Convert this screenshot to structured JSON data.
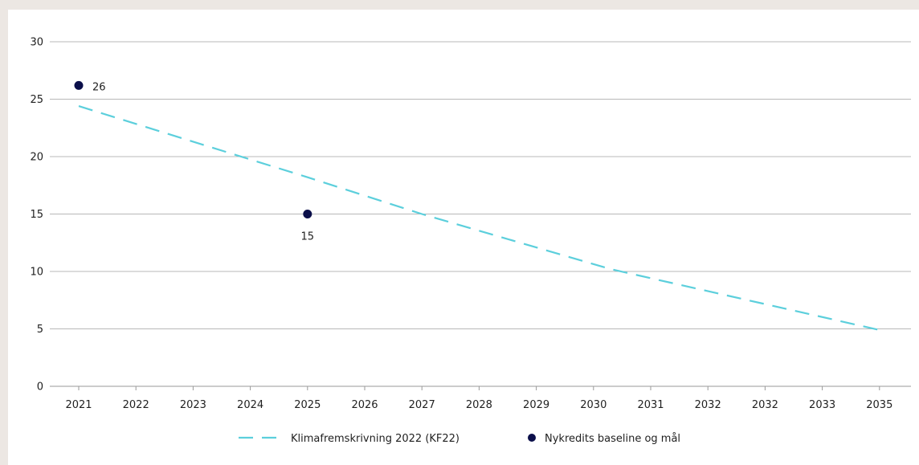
{
  "chart_data": {
    "type": "line",
    "title": "",
    "xlabel": "",
    "ylabel": "",
    "x_tick_labels": [
      "2021",
      "2022",
      "2023",
      "2024",
      "2025",
      "2026",
      "2027",
      "2028",
      "2029",
      "2030",
      "2031",
      "2032",
      "2032",
      "2033",
      "2035"
    ],
    "ylim": [
      0,
      30
    ],
    "y_ticks": [
      0,
      5,
      10,
      15,
      20,
      25,
      30
    ],
    "grid": "horizontal",
    "legend_position": "bottom-center",
    "series": [
      {
        "name": "Klimafremskrivning 2022 (KF22)",
        "style": "dashed-line",
        "color": "#5ccfdc",
        "points": [
          {
            "x": 2021,
            "y": 24.4
          },
          {
            "x": 2025,
            "y": 18.2
          },
          {
            "x": 2027,
            "y": 15.0
          },
          {
            "x": 2030.3,
            "y": 10.2
          },
          {
            "x": 2035,
            "y": 4.9
          }
        ]
      },
      {
        "name": "Nykredits baseline og mål",
        "style": "points",
        "color": "#0b0f4a",
        "points": [
          {
            "x": 2021,
            "y": 26.2,
            "label": "26"
          },
          {
            "x": 2025,
            "y": 15.0,
            "label": "15"
          }
        ]
      }
    ]
  }
}
